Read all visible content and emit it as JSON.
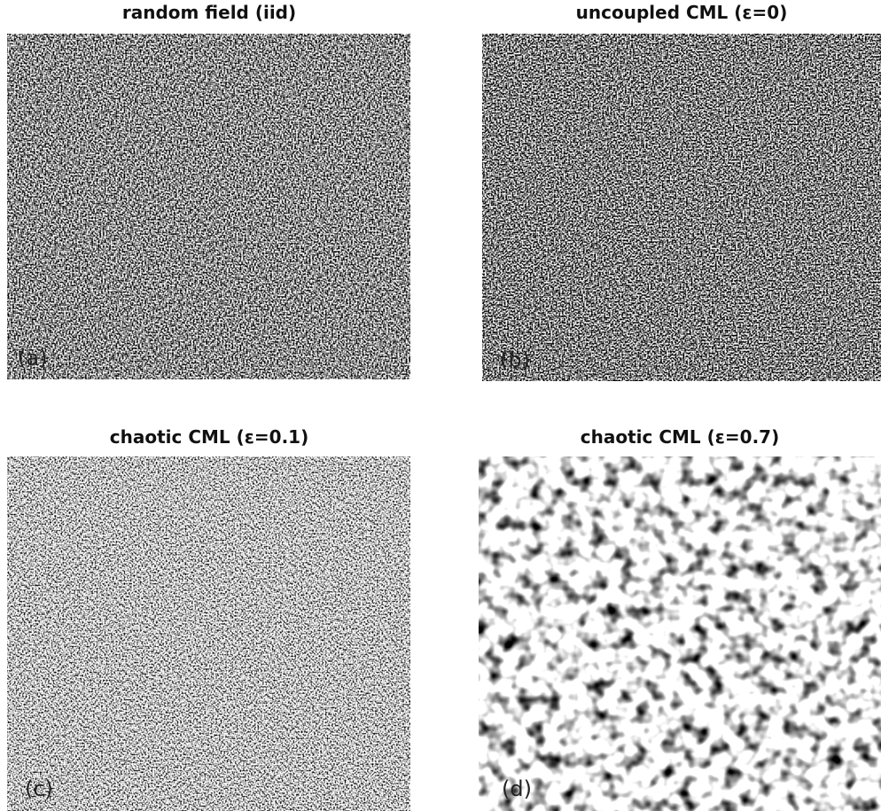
{
  "panels": [
    {
      "title": "random field (iid)",
      "label": "(a)"
    },
    {
      "title": "uncoupled CML (ε=0)",
      "label": "(b)"
    },
    {
      "title": "chaotic CML (ε=0.1)",
      "label": "(c)"
    },
    {
      "title": "chaotic CML (ε=0.7)",
      "label": "(d)"
    }
  ]
}
